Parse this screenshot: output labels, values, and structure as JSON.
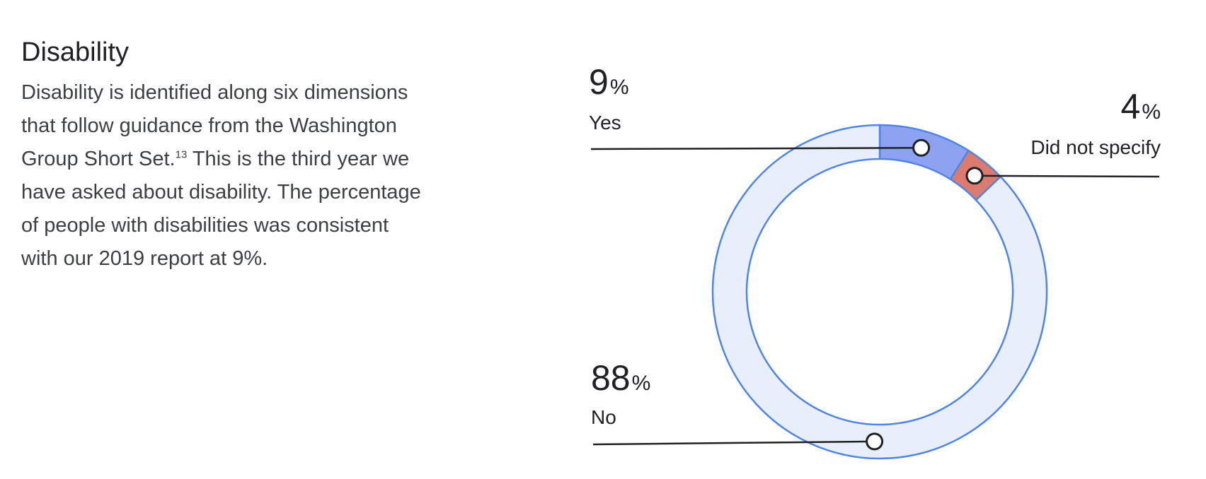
{
  "section": {
    "title": "Disability",
    "body_before_sup": "Disability is identified along six dimensions\nthat follow guidance from the Washington\nGroup Short Set.",
    "footnote_ref": "13",
    "body_after_sup": " This is the third year we\nhave asked about disability. The percentage\nof people with disabilities was consistent\nwith our 2019 report at 9%."
  },
  "chart_data": {
    "type": "pie",
    "variant": "donut",
    "categories": [
      "Yes",
      "Did not specify",
      "No"
    ],
    "values": [
      9,
      4,
      88
    ],
    "value_labels": [
      "9",
      "4",
      "88"
    ],
    "unit": "%",
    "colors": {
      "Yes": "#8ea2f2",
      "Did not specify": "#db7b70",
      "No": "#e8effb",
      "outline": "#4f86e3",
      "leader": "#202124"
    }
  }
}
